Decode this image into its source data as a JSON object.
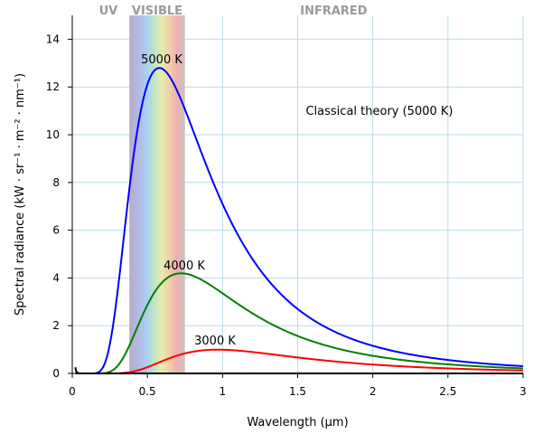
{
  "chart_data": {
    "type": "line",
    "title": "",
    "xlabel": "Wavelength (μm)",
    "ylabel": "Spectral radiance (kW · sr⁻¹ · m⁻² · nm⁻¹)",
    "xlim": [
      0,
      3
    ],
    "ylim": [
      0,
      15
    ],
    "x_ticks": [
      0,
      0.5,
      1,
      1.5,
      2,
      2.5,
      3
    ],
    "x_tick_labels": [
      "0",
      "0.5",
      "1",
      "1.5",
      "2",
      "2.5",
      "3"
    ],
    "y_ticks": [
      0,
      2,
      4,
      6,
      8,
      10,
      12,
      14
    ],
    "y_tick_labels": [
      "0",
      "2",
      "4",
      "6",
      "8",
      "10",
      "12",
      "14"
    ],
    "grid": true,
    "legend": "none",
    "regions": [
      {
        "label": "UV",
        "x_range": [
          0,
          0.38
        ]
      },
      {
        "label": "VISIBLE",
        "x_range": [
          0.38,
          0.75
        ]
      },
      {
        "label": "INFRARED",
        "x_range": [
          0.75,
          3
        ]
      }
    ],
    "series": [
      {
        "label": "5000 K",
        "temperature_K": 5000,
        "model": "planck",
        "color": "#0000ff",
        "peak": [
          0.58,
          12.7
        ]
      },
      {
        "label": "4000 K",
        "temperature_K": 4000,
        "model": "planck",
        "color": "#008000",
        "peak": [
          0.72,
          4.2
        ]
      },
      {
        "label": "3000 K",
        "temperature_K": 3000,
        "model": "planck",
        "color": "#ff0000",
        "peak": [
          0.97,
          1.0
        ]
      },
      {
        "label": "Classical theory (5000 K)",
        "temperature_K": 5000,
        "model": "rayleigh-jeans",
        "color": "#000000"
      }
    ]
  }
}
